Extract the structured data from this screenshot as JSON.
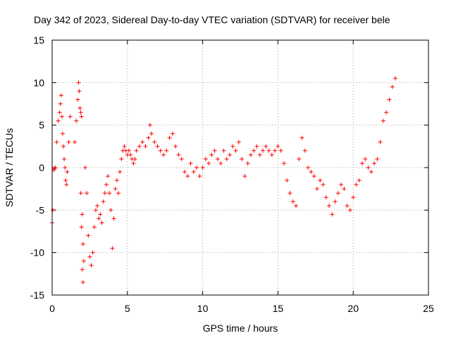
{
  "chart_data": {
    "type": "scatter",
    "title": "Day 342 of 2023, Sidereal Day-to-day VTEC variation (SDTVAR) for receiver bele",
    "xlabel": "GPS time / hours",
    "ylabel": "SDTVAR / TECUs",
    "xlim": [
      0,
      25
    ],
    "ylim": [
      -15,
      15
    ],
    "xticks": [
      0,
      5,
      10,
      15,
      20,
      25
    ],
    "yticks": [
      -15,
      -10,
      -5,
      0,
      5,
      10,
      15
    ],
    "xtick_labels": [
      "0",
      "5",
      "10",
      "15",
      "20",
      "25"
    ],
    "ytick_labels": [
      "-15",
      "-10",
      "-5",
      "0",
      "5",
      "10",
      "15"
    ],
    "grid": true,
    "marker": "+",
    "color": "#ff0000",
    "series": [
      {
        "name": "SDTVAR",
        "x": [
          0.0,
          0.05,
          0.1,
          0.15,
          0.2,
          0.3,
          0.4,
          0.5,
          0.55,
          0.6,
          0.65,
          0.7,
          0.75,
          0.8,
          0.85,
          0.9,
          0.95,
          1.0,
          1.1,
          1.2,
          1.5,
          1.6,
          1.7,
          1.75,
          1.8,
          1.85,
          1.9,
          1.95,
          2.0,
          2.05,
          1.9,
          1.95,
          2.0,
          2.05,
          2.1,
          2.2,
          2.3,
          2.4,
          2.5,
          2.6,
          2.7,
          2.8,
          2.9,
          3.0,
          3.1,
          3.2,
          3.3,
          3.4,
          3.5,
          3.6,
          3.7,
          3.8,
          3.9,
          4.0,
          4.1,
          4.2,
          4.3,
          4.4,
          4.5,
          4.6,
          4.7,
          4.8,
          4.9,
          5.0,
          5.1,
          5.2,
          5.3,
          5.4,
          5.5,
          5.6,
          5.8,
          6.0,
          6.2,
          6.4,
          6.5,
          6.6,
          6.8,
          7.0,
          7.2,
          7.4,
          7.6,
          7.8,
          8.0,
          8.2,
          8.4,
          8.6,
          8.8,
          9.0,
          9.2,
          9.4,
          9.6,
          9.8,
          10.0,
          10.2,
          10.4,
          10.6,
          10.8,
          11.0,
          11.2,
          11.4,
          11.6,
          11.8,
          12.0,
          12.2,
          12.4,
          12.6,
          12.8,
          13.0,
          13.2,
          13.4,
          13.6,
          13.8,
          14.0,
          14.2,
          14.4,
          14.6,
          14.8,
          15.0,
          15.2,
          15.4,
          15.6,
          15.8,
          16.0,
          16.2,
          16.4,
          16.6,
          16.8,
          17.0,
          17.2,
          17.4,
          17.6,
          17.8,
          18.0,
          18.2,
          18.4,
          18.6,
          18.8,
          19.0,
          19.2,
          19.4,
          19.6,
          19.8,
          20.0,
          20.2,
          20.4,
          20.6,
          20.8,
          21.0,
          21.2,
          21.4,
          21.6,
          21.8,
          22.0,
          22.2,
          22.4,
          22.6,
          22.8
        ],
        "y": [
          -6.5,
          -5.0,
          -0.3,
          -0.1,
          0.0,
          3.0,
          5.5,
          6.5,
          7.5,
          8.5,
          6.0,
          4.0,
          2.5,
          1.0,
          0.0,
          -1.5,
          -2.0,
          -0.5,
          3.0,
          6.0,
          3.0,
          5.5,
          8.0,
          10.0,
          9.0,
          7.0,
          6.5,
          6.0,
          -5.5,
          -9.0,
          -3.0,
          -7.0,
          -12.0,
          -13.5,
          -11.0,
          0.0,
          -3.0,
          -8.0,
          -10.5,
          -11.5,
          -10.0,
          -7.0,
          -5.0,
          -4.5,
          -6.0,
          -5.5,
          -6.5,
          -4.0,
          -3.0,
          -2.0,
          -1.0,
          -3.0,
          -5.0,
          -9.5,
          -6.0,
          -2.5,
          -1.5,
          -3.0,
          -0.5,
          1.0,
          2.0,
          2.5,
          2.0,
          1.5,
          2.0,
          1.5,
          1.0,
          0.5,
          1.0,
          2.0,
          2.5,
          3.0,
          2.5,
          3.5,
          5.0,
          4.0,
          3.0,
          2.5,
          2.0,
          1.5,
          2.0,
          3.5,
          4.0,
          2.5,
          1.5,
          1.0,
          -0.5,
          -1.0,
          0.5,
          -0.5,
          0.0,
          -1.0,
          0.0,
          1.0,
          0.5,
          1.5,
          2.0,
          1.0,
          0.5,
          2.0,
          1.0,
          1.5,
          2.5,
          2.0,
          3.0,
          1.0,
          -1.0,
          0.5,
          1.5,
          2.0,
          2.5,
          1.5,
          2.0,
          2.5,
          2.0,
          1.5,
          2.0,
          2.5,
          2.0,
          0.5,
          -1.5,
          -3.0,
          -4.0,
          -4.5,
          1.0,
          3.5,
          2.0,
          0.0,
          -0.5,
          -1.0,
          -2.5,
          -1.5,
          -2.0,
          -3.5,
          -4.5,
          -5.5,
          -4.0,
          -3.0,
          -2.0,
          -2.5,
          -4.5,
          -5.0,
          -3.5,
          -2.0,
          -1.5,
          0.5,
          1.0,
          0.0,
          -0.5,
          0.5,
          1.0,
          3.0,
          5.5,
          6.5,
          8.0,
          9.5,
          10.5
        ]
      }
    ]
  }
}
